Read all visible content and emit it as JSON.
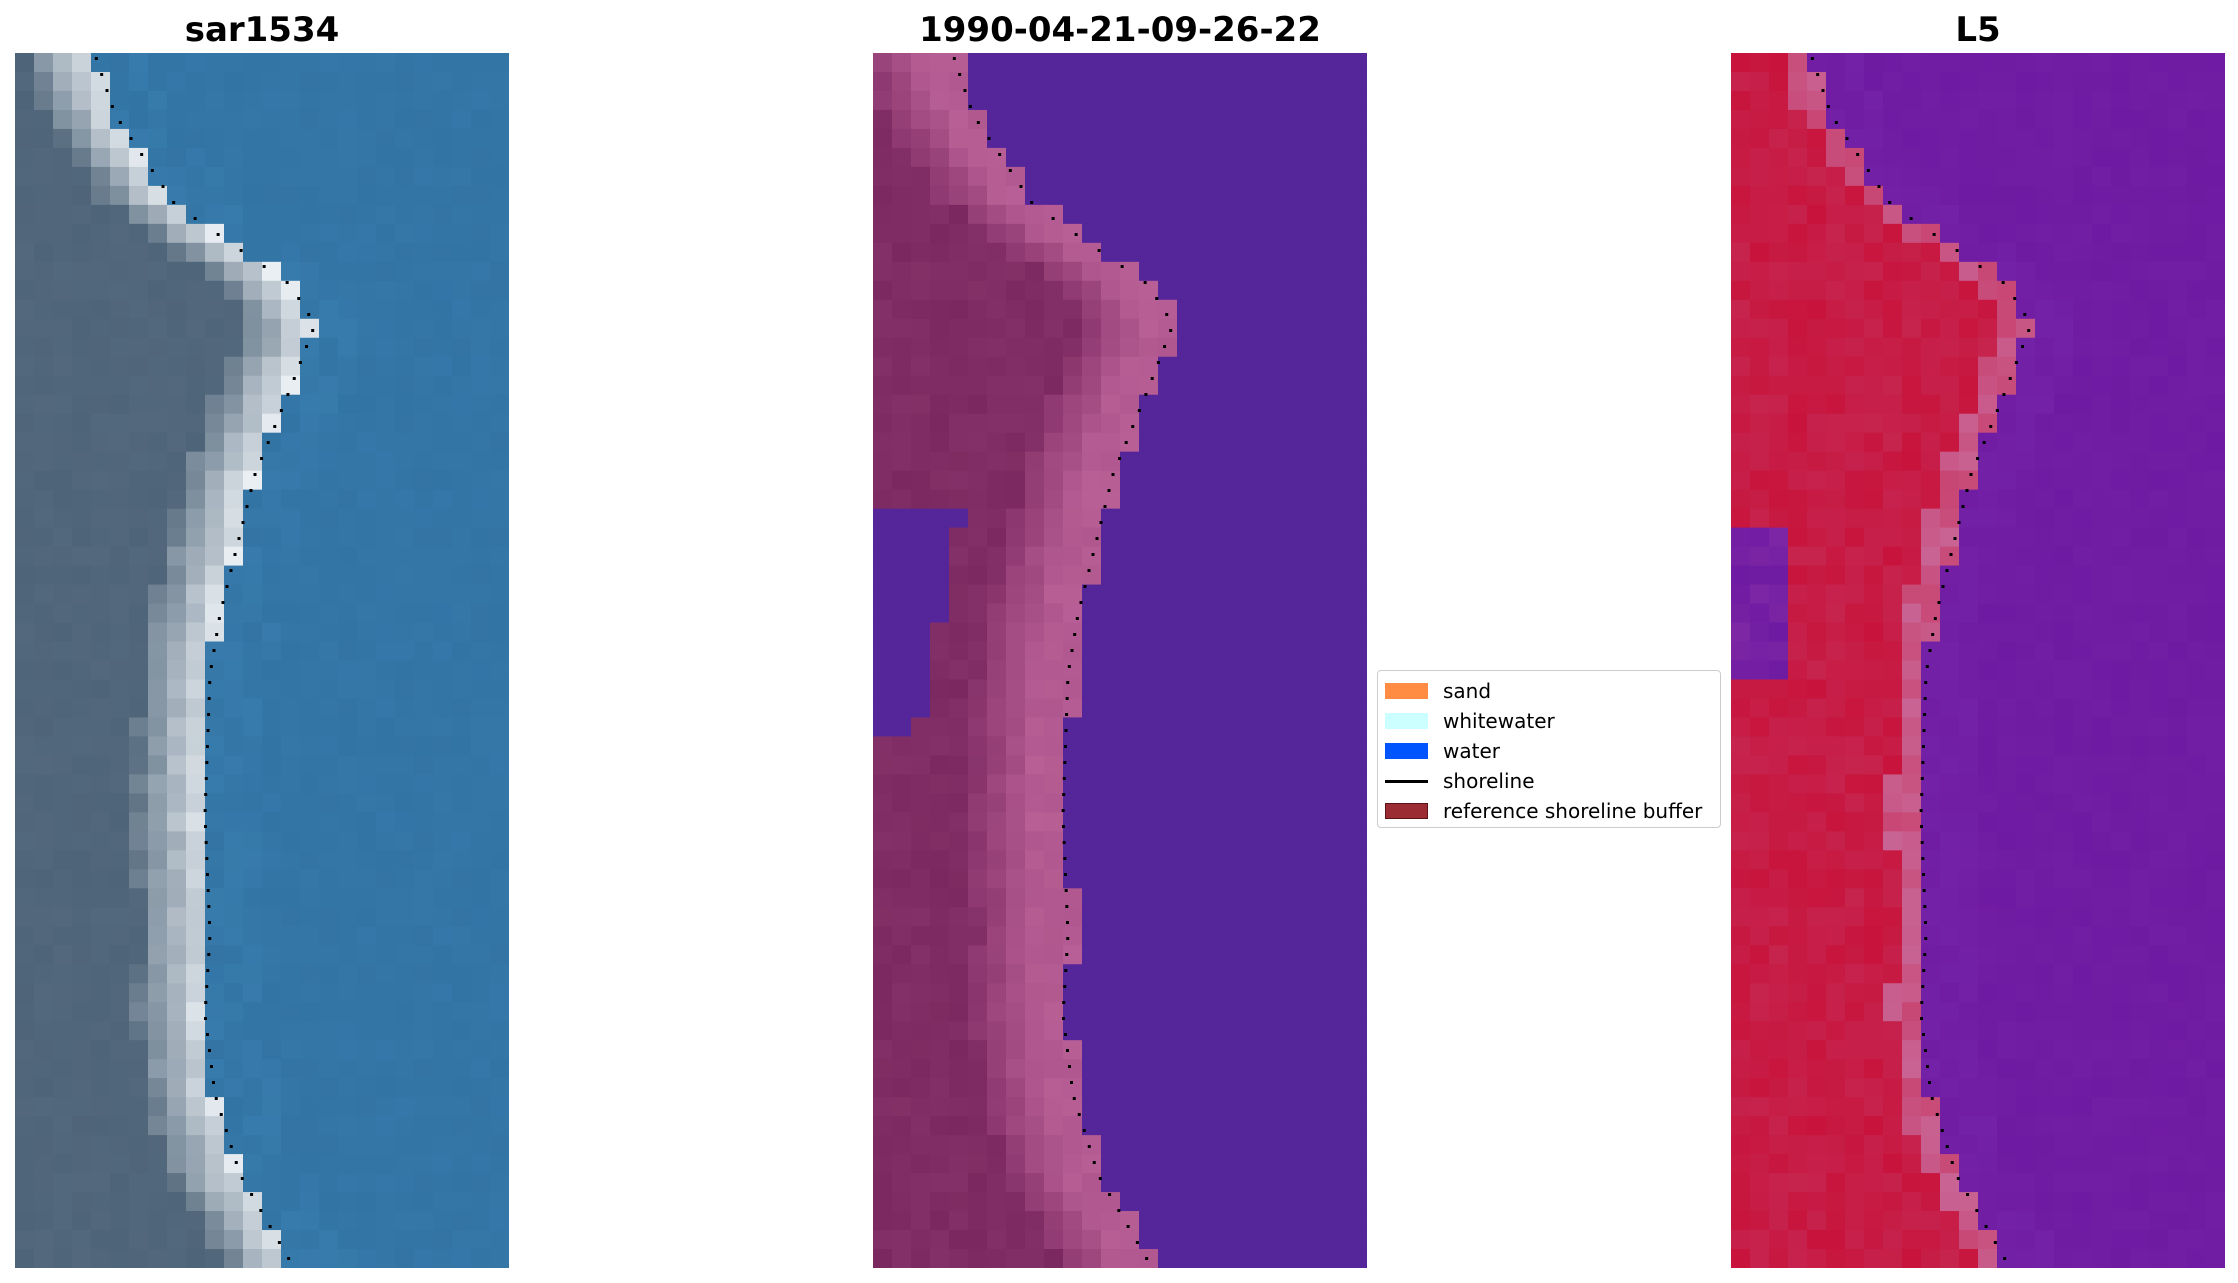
{
  "panels": [
    {
      "id": "rgb",
      "title": "sar1534"
    },
    {
      "id": "classified",
      "title": "1990-04-21-09-26-22"
    },
    {
      "id": "index",
      "title": "L5"
    }
  ],
  "legend": {
    "items": [
      {
        "label": "sand",
        "kind": "patch",
        "color": "#ff8c42"
      },
      {
        "label": "whitewater",
        "kind": "patch",
        "color": "#ccffff"
      },
      {
        "label": "water",
        "kind": "patch",
        "color": "#0055ff"
      },
      {
        "label": "shoreline",
        "kind": "line",
        "color": "#000000"
      },
      {
        "label": "reference shoreline buffer",
        "kind": "patch",
        "color": "#9c2c33"
      }
    ]
  },
  "colors": {
    "water_rgb": "#2f6f9e",
    "whitewater_rgb": "#eef3f7",
    "land_rgb": "#4e6478",
    "classified_water": "#55259a",
    "classified_sand": "#b85f96",
    "classified_land": "#7b2860",
    "index_land": "#c8143c",
    "index_water": "#6e1aa2"
  }
}
